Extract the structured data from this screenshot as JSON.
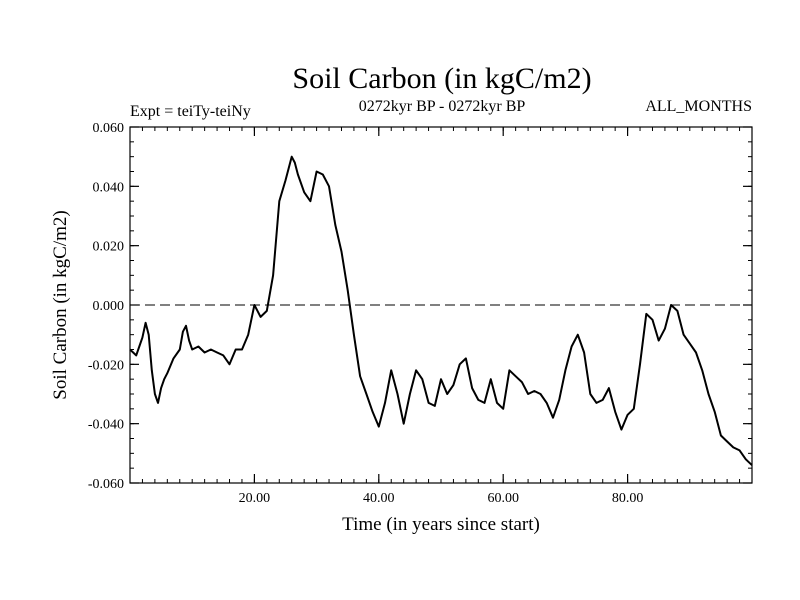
{
  "chart_data": {
    "type": "line",
    "title": "Soil Carbon (in kgC/m2)",
    "subtitle": "0272kyr BP - 0272kyr BP",
    "expt_label": "Expt = teiTy-teiNy",
    "months_label": "ALL_MONTHS",
    "xlabel": "Time (in years since start)",
    "ylabel": "Soil Carbon (in kgC/m2)",
    "xlim": [
      0,
      100
    ],
    "ylim": [
      -0.06,
      0.06
    ],
    "x_ticks": [
      20,
      40,
      60,
      80
    ],
    "x_tick_labels": [
      "20.00",
      "40.00",
      "60.00",
      "80.00"
    ],
    "y_ticks": [
      0.06,
      0.04,
      0.02,
      0.0,
      -0.02,
      -0.04,
      -0.06
    ],
    "y_tick_labels": [
      "0.060",
      "0.040",
      "0.020",
      "0.000",
      "-0.020",
      "-0.040",
      "-0.060"
    ],
    "reference_line": 0.0,
    "series": [
      {
        "name": "Soil Carbon",
        "x": [
          0,
          1,
          1.5,
          2,
          2.5,
          3,
          3.5,
          4,
          4.5,
          5,
          5.5,
          6,
          7,
          8,
          8.5,
          9,
          9.5,
          10,
          11,
          12,
          13,
          14,
          15,
          16,
          17,
          18,
          19,
          20,
          21,
          22,
          23,
          24,
          25,
          26,
          26.5,
          27,
          28,
          29,
          30,
          31,
          32,
          33,
          34,
          35,
          36,
          37,
          38,
          39,
          40,
          41,
          42,
          43,
          44,
          45,
          46,
          47,
          48,
          49,
          50,
          51,
          52,
          53,
          54,
          55,
          56,
          57,
          58,
          59,
          60,
          61,
          62,
          63,
          64,
          65,
          66,
          67,
          68,
          69,
          70,
          71,
          72,
          73,
          74,
          75,
          76,
          77,
          78,
          79,
          80,
          81,
          82,
          83,
          84,
          85,
          86,
          87,
          88,
          89,
          90,
          91,
          92,
          93,
          94,
          95,
          96,
          97,
          98,
          99,
          100
        ],
        "values": [
          -0.015,
          -0.017,
          -0.014,
          -0.011,
          -0.006,
          -0.01,
          -0.022,
          -0.03,
          -0.033,
          -0.028,
          -0.025,
          -0.023,
          -0.018,
          -0.015,
          -0.009,
          -0.007,
          -0.012,
          -0.015,
          -0.014,
          -0.016,
          -0.015,
          -0.016,
          -0.017,
          -0.02,
          -0.015,
          -0.015,
          -0.01,
          0.0,
          -0.004,
          -0.002,
          0.01,
          0.035,
          0.042,
          0.05,
          0.048,
          0.044,
          0.038,
          0.035,
          0.045,
          0.044,
          0.04,
          0.027,
          0.018,
          0.005,
          -0.01,
          -0.024,
          -0.03,
          -0.036,
          -0.041,
          -0.033,
          -0.022,
          -0.03,
          -0.04,
          -0.03,
          -0.022,
          -0.025,
          -0.033,
          -0.034,
          -0.025,
          -0.03,
          -0.027,
          -0.02,
          -0.018,
          -0.028,
          -0.032,
          -0.033,
          -0.025,
          -0.033,
          -0.035,
          -0.022,
          -0.024,
          -0.026,
          -0.03,
          -0.029,
          -0.03,
          -0.033,
          -0.038,
          -0.032,
          -0.022,
          -0.014,
          -0.01,
          -0.016,
          -0.03,
          -0.033,
          -0.032,
          -0.028,
          -0.036,
          -0.042,
          -0.037,
          -0.035,
          -0.02,
          -0.003,
          -0.005,
          -0.012,
          -0.008,
          0.0,
          -0.002,
          -0.01,
          -0.013,
          -0.016,
          -0.022,
          -0.03,
          -0.036,
          -0.044,
          -0.046,
          -0.048,
          -0.049,
          -0.052,
          -0.054
        ]
      }
    ]
  }
}
